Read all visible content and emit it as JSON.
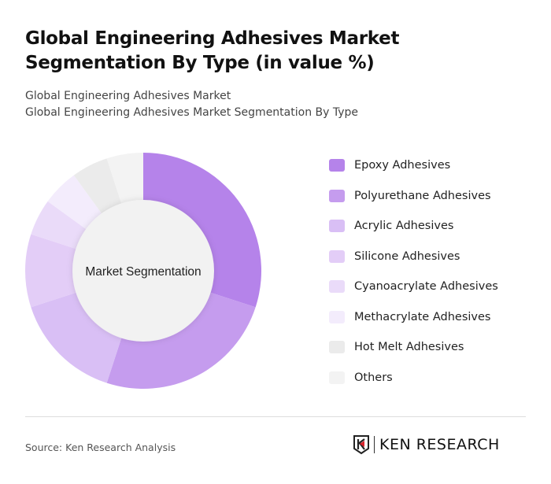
{
  "header": {
    "title": "Global Engineering Adhesives Market Segmentation By Type (in value %)",
    "subtitle1": "Global Engineering Adhesives Market",
    "subtitle2": "Global Engineering Adhesives Market Segmentation By Type"
  },
  "chart_data": {
    "type": "pie",
    "variant": "donut",
    "center_label": "Market Segmentation",
    "legend_position": "right",
    "categories": [
      "Epoxy Adhesives",
      "Polyurethane Adhesives",
      "Acrylic Adhesives",
      "Silicone Adhesives",
      "Cyanoacrylate Adhesives",
      "Methacrylate Adhesives",
      "Hot Melt Adhesives",
      "Others"
    ],
    "values": [
      30,
      25,
      15,
      10,
      5,
      5,
      5,
      5
    ],
    "colors": [
      "#b583ea",
      "#c59cee",
      "#d9bff5",
      "#e3cdf7",
      "#eadbf9",
      "#f3ecfc",
      "#ebebeb",
      "#f3f3f3"
    ]
  },
  "footer": {
    "source": "Source: Ken Research Analysis",
    "logo_text": "KEN RESEARCH"
  }
}
